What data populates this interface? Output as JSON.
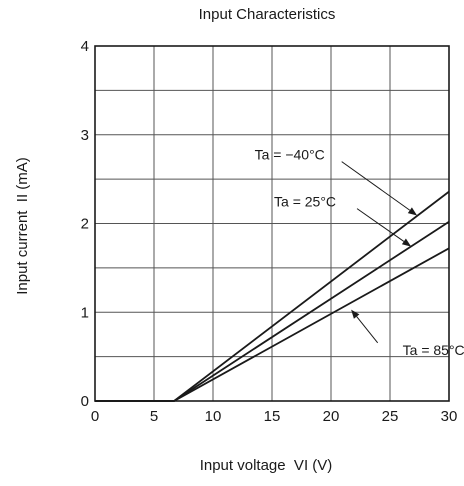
{
  "chart_data": {
    "type": "line",
    "title": "Input Characteristics",
    "xlabel": "Input voltage  VI (V)",
    "ylabel": "Input current  II (mA)",
    "xlim": [
      0,
      30
    ],
    "ylim": [
      0,
      4
    ],
    "x_ticks": [
      0,
      5,
      10,
      15,
      20,
      25,
      30
    ],
    "x_tick_labels": [
      "0",
      "5",
      "10",
      "15",
      "20",
      "25",
      "30"
    ],
    "y_ticks": [
      0,
      1,
      2,
      3,
      4
    ],
    "y_tick_labels": [
      "0",
      "1",
      "2",
      "3",
      "4"
    ],
    "x_grid": [
      0,
      5,
      10,
      15,
      20,
      25,
      30
    ],
    "y_grid": [
      0,
      0.5,
      1,
      1.5,
      2,
      2.5,
      3,
      3.5,
      4
    ],
    "grid": true,
    "legend": "inline labels with leader arrows",
    "series": [
      {
        "name": "Ta = −40°C",
        "x": [
          0,
          6.7,
          30
        ],
        "y": [
          0,
          0,
          2.36
        ],
        "label_at": [
          16.5,
          2.72
        ],
        "arrow_to": [
          27.3,
          2.09
        ]
      },
      {
        "name": "Ta = 25°C",
        "x": [
          0,
          6.7,
          30
        ],
        "y": [
          0,
          0,
          2.02
        ],
        "label_at": [
          17.8,
          2.19
        ],
        "arrow_to": [
          26.8,
          1.74
        ]
      },
      {
        "name": "Ta = 85°C",
        "x": [
          0,
          6.7,
          30
        ],
        "y": [
          0,
          0,
          1.72
        ],
        "label_at": [
          28.7,
          0.52
        ],
        "arrow_to": [
          21.7,
          1.03
        ]
      }
    ]
  }
}
